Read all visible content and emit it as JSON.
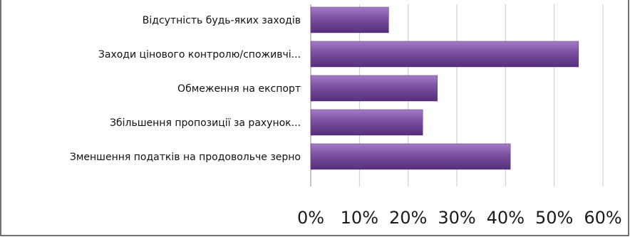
{
  "chart_data": {
    "type": "bar",
    "orientation": "horizontal",
    "categories": [
      "Відсутність будь-яких заходів",
      "Заходи цінового контролю/споживчі...",
      "Обмеження на експорт",
      "Збільшення пропозиції за рахунок...",
      "Зменшення податків на продовольче зерно"
    ],
    "values": [
      16,
      55,
      26,
      23,
      41
    ],
    "xlim": [
      0,
      60
    ],
    "xticks": [
      0,
      10,
      20,
      30,
      40,
      50,
      60
    ],
    "tick_labels": [
      "0%",
      "10%",
      "20%",
      "30%",
      "40%",
      "50%",
      "60%"
    ],
    "title": "",
    "xlabel": "",
    "ylabel": "",
    "grid": "vertical",
    "legend": "none",
    "colors": {
      "bar": "#7a4fa0",
      "bar_light": "#a27cc4",
      "bar_dark": "#55307a",
      "grid": "#c8c8c8",
      "frame": "#444444"
    }
  }
}
